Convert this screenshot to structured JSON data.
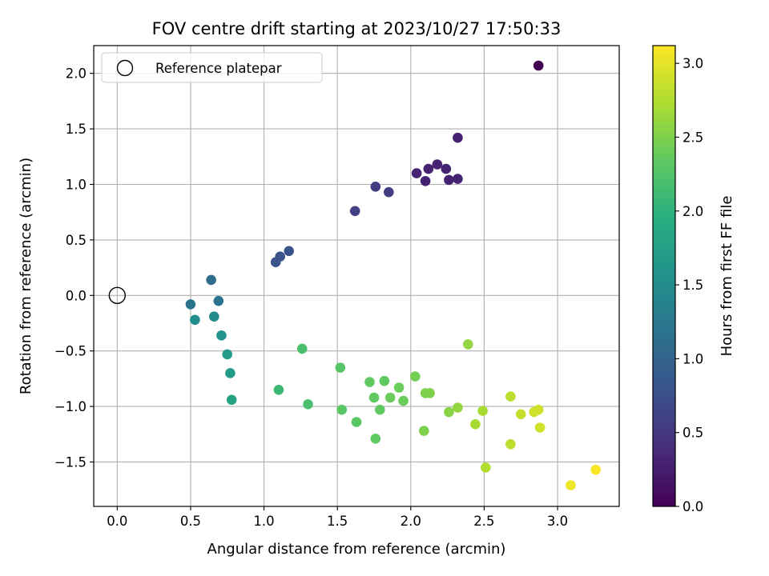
{
  "chart_data": {
    "type": "scatter",
    "title": "FOV centre drift starting at 2023/10/27 17:50:33",
    "xlabel": "Angular distance from reference (arcmin)",
    "ylabel": "Rotation from reference (arcmin)",
    "xlim": [
      -0.16,
      3.42
    ],
    "ylim": [
      -1.9,
      2.25
    ],
    "xticks": [
      0.0,
      0.5,
      1.0,
      1.5,
      2.0,
      2.5,
      3.0
    ],
    "xtick_labels": [
      "0.0",
      "0.5",
      "1.0",
      "1.5",
      "2.0",
      "2.5",
      "3.0"
    ],
    "yticks": [
      -1.5,
      -1.0,
      -0.5,
      0.0,
      0.5,
      1.0,
      1.5,
      2.0
    ],
    "ytick_labels": [
      "−1.5",
      "−1.0",
      "−0.5",
      "0.0",
      "0.5",
      "1.0",
      "1.5",
      "2.0"
    ],
    "grid": true,
    "legend": {
      "position": "top-left",
      "entries": [
        "Reference platepar"
      ]
    },
    "reference_point": {
      "x": 0.0,
      "y": 0.0,
      "marker": "open-circle",
      "color": "#000000"
    },
    "colorbar": {
      "label": "Hours from first FF file",
      "colormap": "viridis",
      "range": [
        0.0,
        3.12
      ],
      "ticks": [
        0.0,
        0.5,
        1.0,
        1.5,
        2.0,
        2.5,
        3.0
      ],
      "tick_labels": [
        "0.0",
        "0.5",
        "1.0",
        "1.5",
        "2.0",
        "2.5",
        "3.0"
      ]
    },
    "points": [
      {
        "x": 2.87,
        "y": 2.07,
        "hours": 0.0
      },
      {
        "x": 2.32,
        "y": 1.42,
        "hours": 0.3
      },
      {
        "x": 2.18,
        "y": 1.18,
        "hours": 0.3
      },
      {
        "x": 2.24,
        "y": 1.14,
        "hours": 0.3
      },
      {
        "x": 2.12,
        "y": 1.14,
        "hours": 0.3
      },
      {
        "x": 2.04,
        "y": 1.1,
        "hours": 0.3
      },
      {
        "x": 2.1,
        "y": 1.03,
        "hours": 0.3
      },
      {
        "x": 2.26,
        "y": 1.04,
        "hours": 0.3
      },
      {
        "x": 2.32,
        "y": 1.05,
        "hours": 0.3
      },
      {
        "x": 1.76,
        "y": 0.98,
        "hours": 0.55
      },
      {
        "x": 1.85,
        "y": 0.93,
        "hours": 0.55
      },
      {
        "x": 1.62,
        "y": 0.76,
        "hours": 0.6
      },
      {
        "x": 1.17,
        "y": 0.4,
        "hours": 0.8
      },
      {
        "x": 1.11,
        "y": 0.35,
        "hours": 0.8
      },
      {
        "x": 1.08,
        "y": 0.3,
        "hours": 0.8
      },
      {
        "x": 0.64,
        "y": 0.14,
        "hours": 1.1
      },
      {
        "x": 0.5,
        "y": -0.08,
        "hours": 1.2
      },
      {
        "x": 0.69,
        "y": -0.05,
        "hours": 1.2
      },
      {
        "x": 0.53,
        "y": -0.22,
        "hours": 1.5
      },
      {
        "x": 0.66,
        "y": -0.19,
        "hours": 1.5
      },
      {
        "x": 0.71,
        "y": -0.36,
        "hours": 1.6
      },
      {
        "x": 0.75,
        "y": -0.53,
        "hours": 1.7
      },
      {
        "x": 0.77,
        "y": -0.7,
        "hours": 1.7
      },
      {
        "x": 0.78,
        "y": -0.94,
        "hours": 1.8
      },
      {
        "x": 1.1,
        "y": -0.85,
        "hours": 2.1
      },
      {
        "x": 1.26,
        "y": -0.48,
        "hours": 2.2
      },
      {
        "x": 1.3,
        "y": -0.98,
        "hours": 2.2
      },
      {
        "x": 1.52,
        "y": -0.65,
        "hours": 2.3
      },
      {
        "x": 1.53,
        "y": -1.03,
        "hours": 2.3
      },
      {
        "x": 1.63,
        "y": -1.14,
        "hours": 2.3
      },
      {
        "x": 1.72,
        "y": -0.78,
        "hours": 2.35
      },
      {
        "x": 1.75,
        "y": -0.92,
        "hours": 2.35
      },
      {
        "x": 1.76,
        "y": -1.29,
        "hours": 2.35
      },
      {
        "x": 1.79,
        "y": -1.03,
        "hours": 2.35
      },
      {
        "x": 1.82,
        "y": -0.77,
        "hours": 2.35
      },
      {
        "x": 1.86,
        "y": -0.92,
        "hours": 2.4
      },
      {
        "x": 1.92,
        "y": -0.83,
        "hours": 2.4
      },
      {
        "x": 1.95,
        "y": -0.95,
        "hours": 2.4
      },
      {
        "x": 2.03,
        "y": -0.73,
        "hours": 2.45
      },
      {
        "x": 2.09,
        "y": -1.22,
        "hours": 2.5
      },
      {
        "x": 2.1,
        "y": -0.88,
        "hours": 2.5
      },
      {
        "x": 2.13,
        "y": -0.88,
        "hours": 2.5
      },
      {
        "x": 2.26,
        "y": -1.05,
        "hours": 2.55
      },
      {
        "x": 2.32,
        "y": -1.01,
        "hours": 2.6
      },
      {
        "x": 2.39,
        "y": -0.44,
        "hours": 2.6
      },
      {
        "x": 2.44,
        "y": -1.16,
        "hours": 2.7
      },
      {
        "x": 2.49,
        "y": -1.04,
        "hours": 2.7
      },
      {
        "x": 2.51,
        "y": -1.55,
        "hours": 2.75
      },
      {
        "x": 2.68,
        "y": -0.91,
        "hours": 2.8
      },
      {
        "x": 2.68,
        "y": -1.34,
        "hours": 2.8
      },
      {
        "x": 2.75,
        "y": -1.07,
        "hours": 2.85
      },
      {
        "x": 2.84,
        "y": -1.05,
        "hours": 2.9
      },
      {
        "x": 2.87,
        "y": -1.03,
        "hours": 2.9
      },
      {
        "x": 2.88,
        "y": -1.19,
        "hours": 2.9
      },
      {
        "x": 3.09,
        "y": -1.71,
        "hours": 3.05
      },
      {
        "x": 3.26,
        "y": -1.57,
        "hours": 3.1
      }
    ]
  }
}
